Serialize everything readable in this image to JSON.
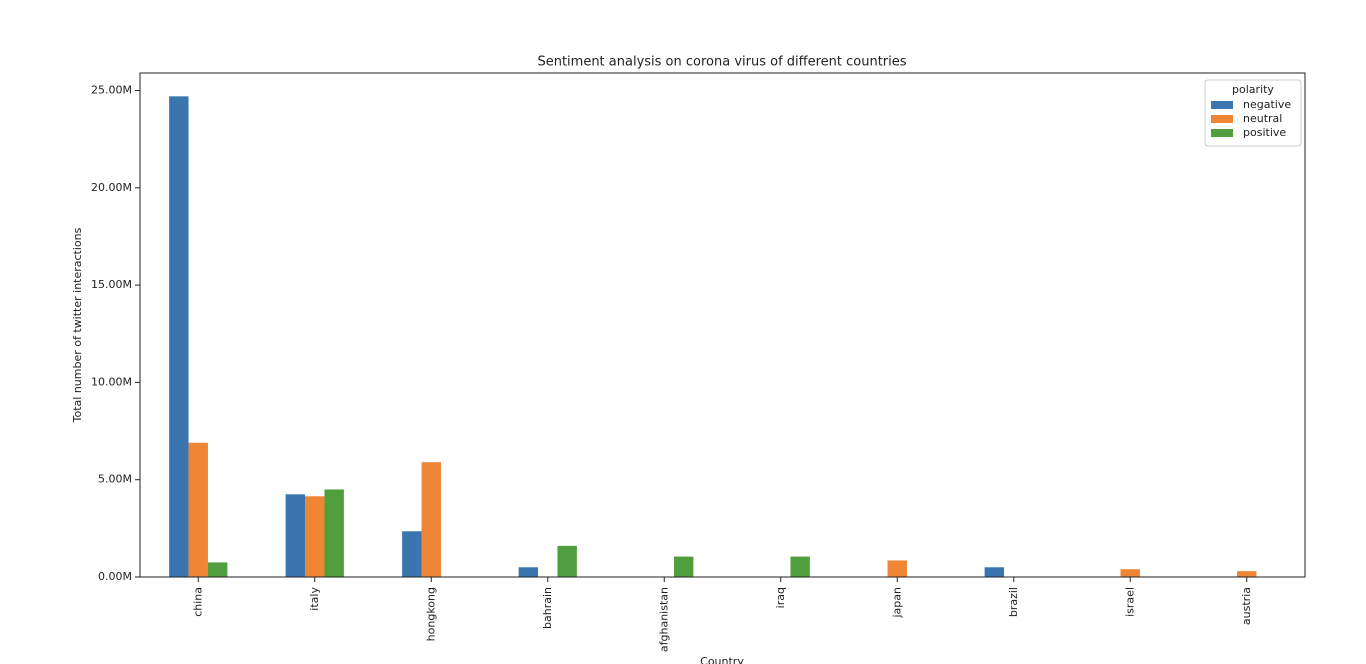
{
  "chart_data": {
    "type": "bar",
    "title": "Sentiment analysis on corona virus of different countries",
    "xlabel": "Country",
    "ylabel": "Total number of twitter interactions",
    "categories": [
      "china",
      "italy",
      "hongkong",
      "bahrain",
      "afghanistan",
      "iraq",
      "japan",
      "brazil",
      "israel",
      "austria"
    ],
    "legend_title": "polarity",
    "legend": "upper right",
    "series": [
      {
        "name": "negative",
        "color": "#3a75af",
        "values": [
          24.7,
          4.25,
          2.35,
          0.5,
          0,
          0,
          0,
          0.5,
          0,
          0
        ]
      },
      {
        "name": "neutral",
        "color": "#ef8636",
        "values": [
          6.9,
          4.15,
          5.9,
          0,
          0,
          0,
          0.85,
          0,
          0.4,
          0.3
        ]
      },
      {
        "name": "positive",
        "color": "#519e3e",
        "values": [
          0.75,
          4.5,
          0,
          1.6,
          1.05,
          1.05,
          0,
          0,
          0,
          0
        ]
      }
    ],
    "ylim": [
      0,
      25.9
    ],
    "yticks": [
      {
        "value": 0,
        "label": "0.00M"
      },
      {
        "value": 5,
        "label": "5.00M"
      },
      {
        "value": 10,
        "label": "10.00M"
      },
      {
        "value": 15,
        "label": "15.00M"
      },
      {
        "value": 20,
        "label": "20.00M"
      },
      {
        "value": 25,
        "label": "25.00M"
      }
    ]
  }
}
